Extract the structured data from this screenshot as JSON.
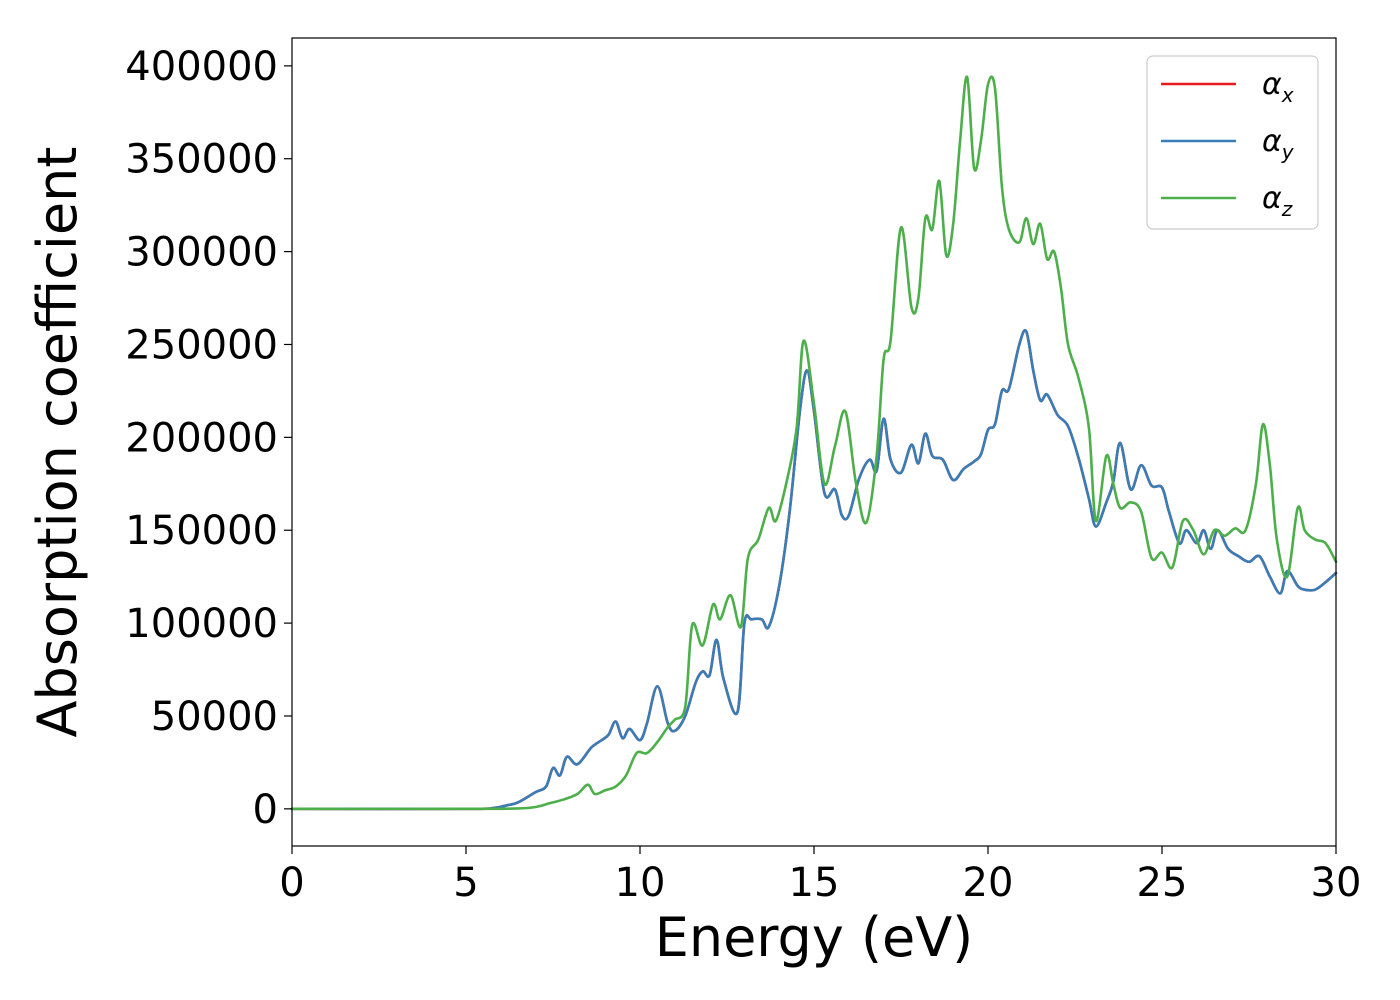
{
  "chart_data": {
    "type": "line",
    "xlabel": "Energy (eV)",
    "ylabel": "Absorption coefficient",
    "xlim": [
      0,
      30
    ],
    "ylim": [
      -20000,
      415000
    ],
    "xticks": [
      0,
      5,
      10,
      15,
      20,
      25,
      30
    ],
    "xtick_labels": [
      "0",
      "5",
      "10",
      "15",
      "20",
      "25",
      "30"
    ],
    "yticks": [
      0,
      50000,
      100000,
      150000,
      200000,
      250000,
      300000,
      350000,
      400000
    ],
    "ytick_labels": [
      "0",
      "50000",
      "100000",
      "150000",
      "200000",
      "250000",
      "300000",
      "350000",
      "400000"
    ],
    "grid": false,
    "legend_position": "top-right",
    "series": [
      {
        "name": "αx",
        "legend_base": "α",
        "legend_sub": "x",
        "color": "#e41a1c",
        "x": [
          0,
          5,
          5.8,
          6.2,
          6.5,
          7.0,
          7.3,
          7.5,
          7.7,
          7.9,
          8.2,
          8.6,
          8.9,
          9.1,
          9.3,
          9.5,
          9.7,
          10.0,
          10.2,
          10.5,
          10.8,
          11.0,
          11.3,
          11.6,
          11.8,
          12.0,
          12.2,
          12.4,
          12.8,
          13.0,
          13.2,
          13.5,
          13.7,
          14.0,
          14.3,
          14.6,
          14.8,
          15.0,
          15.3,
          15.6,
          15.8,
          16.0,
          16.3,
          16.6,
          16.8,
          17.0,
          17.2,
          17.5,
          17.8,
          18.0,
          18.2,
          18.4,
          18.7,
          19.0,
          19.3,
          19.6,
          19.8,
          20.0,
          20.2,
          20.4,
          20.6,
          20.9,
          21.1,
          21.3,
          21.5,
          21.7,
          22.0,
          22.3,
          22.6,
          22.9,
          23.1,
          23.4,
          23.6,
          23.8,
          24.1,
          24.4,
          24.7,
          25.0,
          25.2,
          25.5,
          25.7,
          26.0,
          26.2,
          26.4,
          26.6,
          26.9,
          27.2,
          27.5,
          27.8,
          28.1,
          28.4,
          28.6,
          28.9,
          29.1,
          29.4,
          29.7,
          30.0
        ],
        "y": [
          0,
          0,
          500,
          2000,
          3500,
          9000,
          12000,
          22000,
          18000,
          28000,
          24000,
          33000,
          37000,
          40000,
          47000,
          38000,
          43000,
          37000,
          46000,
          66000,
          46000,
          42000,
          50000,
          68000,
          74000,
          72000,
          91000,
          70000,
          52000,
          100000,
          102000,
          102000,
          98000,
          120000,
          160000,
          215000,
          236000,
          214000,
          170000,
          172000,
          158000,
          158000,
          178000,
          188000,
          182000,
          210000,
          188000,
          181000,
          196000,
          186000,
          202000,
          190000,
          188000,
          177000,
          183000,
          187000,
          191000,
          204000,
          207000,
          225000,
          226000,
          250000,
          257000,
          236000,
          220000,
          223000,
          212000,
          206000,
          189000,
          167000,
          152000,
          165000,
          176000,
          197000,
          172000,
          185000,
          174000,
          173000,
          160000,
          143000,
          150000,
          143000,
          150000,
          140000,
          150000,
          140000,
          136000,
          133000,
          136000,
          125000,
          116000,
          128000,
          120000,
          118000,
          118000,
          122000,
          127000
        ]
      },
      {
        "name": "αy",
        "legend_base": "α",
        "legend_sub": "y",
        "color": "#377eb8",
        "x": [
          0,
          5,
          5.8,
          6.2,
          6.5,
          7.0,
          7.3,
          7.5,
          7.7,
          7.9,
          8.2,
          8.6,
          8.9,
          9.1,
          9.3,
          9.5,
          9.7,
          10.0,
          10.2,
          10.5,
          10.8,
          11.0,
          11.3,
          11.6,
          11.8,
          12.0,
          12.2,
          12.4,
          12.8,
          13.0,
          13.2,
          13.5,
          13.7,
          14.0,
          14.3,
          14.6,
          14.8,
          15.0,
          15.3,
          15.6,
          15.8,
          16.0,
          16.3,
          16.6,
          16.8,
          17.0,
          17.2,
          17.5,
          17.8,
          18.0,
          18.2,
          18.4,
          18.7,
          19.0,
          19.3,
          19.6,
          19.8,
          20.0,
          20.2,
          20.4,
          20.6,
          20.9,
          21.1,
          21.3,
          21.5,
          21.7,
          22.0,
          22.3,
          22.6,
          22.9,
          23.1,
          23.4,
          23.6,
          23.8,
          24.1,
          24.4,
          24.7,
          25.0,
          25.2,
          25.5,
          25.7,
          26.0,
          26.2,
          26.4,
          26.6,
          26.9,
          27.2,
          27.5,
          27.8,
          28.1,
          28.4,
          28.6,
          28.9,
          29.1,
          29.4,
          29.7,
          30.0
        ],
        "y": [
          0,
          0,
          500,
          2000,
          3500,
          9000,
          12000,
          22000,
          18000,
          28000,
          24000,
          33000,
          37000,
          40000,
          47000,
          38000,
          43000,
          37000,
          46000,
          66000,
          46000,
          42000,
          50000,
          68000,
          74000,
          72000,
          91000,
          70000,
          52000,
          100000,
          102000,
          102000,
          98000,
          120000,
          160000,
          215000,
          236000,
          214000,
          170000,
          172000,
          158000,
          158000,
          178000,
          188000,
          182000,
          210000,
          188000,
          181000,
          196000,
          186000,
          202000,
          190000,
          188000,
          177000,
          183000,
          187000,
          191000,
          204000,
          207000,
          225000,
          226000,
          250000,
          257000,
          236000,
          220000,
          223000,
          212000,
          206000,
          189000,
          167000,
          152000,
          165000,
          176000,
          197000,
          172000,
          185000,
          174000,
          173000,
          160000,
          143000,
          150000,
          143000,
          150000,
          140000,
          150000,
          140000,
          136000,
          133000,
          136000,
          125000,
          116000,
          128000,
          120000,
          118000,
          118000,
          122000,
          127000
        ]
      },
      {
        "name": "αz",
        "legend_base": "α",
        "legend_sub": "z",
        "color": "#4daf4a",
        "x": [
          0,
          5,
          6.5,
          7.0,
          7.4,
          7.8,
          8.2,
          8.5,
          8.7,
          9.0,
          9.3,
          9.6,
          9.9,
          10.2,
          10.5,
          10.8,
          11.0,
          11.3,
          11.5,
          11.8,
          12.1,
          12.3,
          12.6,
          12.9,
          13.1,
          13.4,
          13.7,
          13.9,
          14.2,
          14.5,
          14.7,
          15.0,
          15.3,
          15.6,
          15.9,
          16.2,
          16.5,
          16.8,
          17.0,
          17.2,
          17.5,
          17.8,
          18.0,
          18.2,
          18.4,
          18.6,
          18.8,
          19.0,
          19.2,
          19.4,
          19.6,
          19.8,
          20.0,
          20.2,
          20.4,
          20.6,
          20.9,
          21.1,
          21.3,
          21.5,
          21.7,
          21.9,
          22.1,
          22.3,
          22.6,
          22.9,
          23.1,
          23.4,
          23.6,
          23.8,
          24.1,
          24.4,
          24.7,
          25.0,
          25.3,
          25.6,
          25.9,
          26.2,
          26.5,
          26.8,
          27.1,
          27.4,
          27.7,
          27.9,
          28.1,
          28.3,
          28.6,
          28.9,
          29.1,
          29.4,
          29.7,
          30.0
        ],
        "y": [
          0,
          0,
          200,
          1000,
          3000,
          5000,
          8000,
          13000,
          8000,
          10000,
          12000,
          18000,
          30000,
          30000,
          36000,
          44000,
          48000,
          55000,
          99000,
          88000,
          110000,
          102000,
          115000,
          98000,
          135000,
          145000,
          162000,
          155000,
          175000,
          205000,
          252000,
          218000,
          175000,
          195000,
          214000,
          176000,
          154000,
          190000,
          242000,
          252000,
          313000,
          270000,
          275000,
          318000,
          312000,
          338000,
          298000,
          315000,
          360000,
          394000,
          345000,
          360000,
          390000,
          388000,
          335000,
          312000,
          305000,
          318000,
          304000,
          315000,
          296000,
          300000,
          280000,
          250000,
          232000,
          205000,
          155000,
          190000,
          175000,
          162000,
          165000,
          160000,
          135000,
          138000,
          130000,
          155000,
          150000,
          137000,
          150000,
          147000,
          151000,
          150000,
          175000,
          207000,
          185000,
          145000,
          125000,
          162000,
          150000,
          145000,
          143000,
          133000
        ]
      }
    ]
  }
}
